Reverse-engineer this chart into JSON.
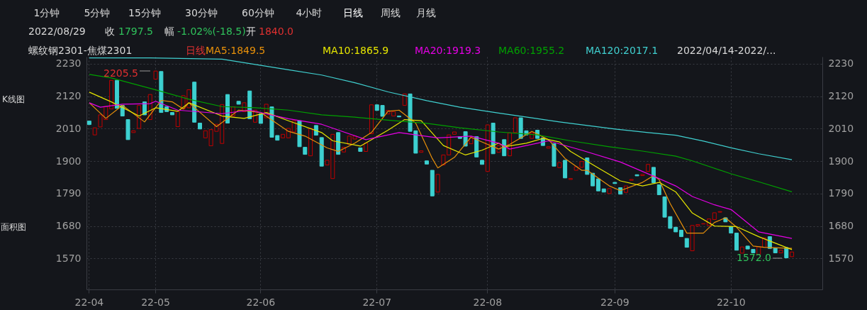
{
  "chart_data": {
    "type": "candlestick",
    "title": "螺纹钢2301-焦煤2301",
    "subtitle": "日线",
    "annotations": [
      "1分钟",
      "5分钟",
      "15分钟",
      "30分钟",
      "60分钟",
      "4小时",
      "日线",
      "周线",
      "月线",
      "2022/08/29",
      "收",
      "1797.5",
      "幅",
      "-1.02%(-18.5)",
      "开",
      "1840.0",
      "K线图",
      "面积图",
      "2022/04/14-2022/...",
      "2205.5",
      "1572.0"
    ],
    "categories": [
      "22-04",
      null,
      null,
      null,
      null,
      null,
      null,
      null,
      null,
      null,
      null,
      null,
      "22-05",
      null,
      null,
      null,
      null,
      null,
      null,
      null,
      null,
      null,
      null,
      null,
      null,
      null,
      null,
      null,
      null,
      null,
      null,
      "22-06",
      null,
      null,
      null,
      null,
      null,
      null,
      null,
      null,
      null,
      null,
      null,
      null,
      null,
      null,
      null,
      null,
      null,
      null,
      null,
      null,
      "22-07",
      null,
      null,
      null,
      null,
      null,
      null,
      null,
      null,
      null,
      null,
      null,
      null,
      null,
      null,
      null,
      null,
      null,
      null,
      null,
      "22-08",
      null,
      null,
      null,
      null,
      null,
      null,
      null,
      null,
      null,
      null,
      null,
      null,
      null,
      null,
      null,
      null,
      null,
      null,
      null,
      null,
      null,
      null,
      "22-09",
      null,
      null,
      null,
      null,
      null,
      null,
      null,
      null,
      null,
      null,
      null,
      null,
      null,
      null,
      null,
      null,
      null,
      null,
      null,
      null,
      "22-10",
      null,
      null,
      null,
      null,
      null,
      null,
      null,
      null,
      null,
      null,
      null
    ],
    "ohlc": [
      [
        2036,
        2036,
        2024,
        2024
      ],
      [
        1989,
        2013,
        1989,
        2013
      ],
      [
        2016,
        2057,
        2016,
        2057
      ],
      [
        2041,
        2085,
        2041,
        2085
      ],
      [
        2077,
        2174,
        2077,
        2174
      ],
      [
        2174,
        2174,
        2079,
        2079
      ],
      [
        2089,
        2089,
        2053,
        2053
      ],
      [
        2041,
        2041,
        1973,
        1973
      ],
      [
        1997,
        2003,
        1997,
        2003
      ],
      [
        2011,
        2089,
        2011,
        2089
      ],
      [
        2101,
        2101,
        2057,
        2057
      ],
      [
        2041,
        2126,
        2041,
        2126
      ],
      [
        2178,
        2205.5,
        2178,
        2205.5
      ],
      [
        2204,
        2204,
        2065,
        2065
      ],
      [
        2085,
        2085,
        2068,
        2068
      ],
      [
        2065,
        2065,
        2057,
        2057
      ],
      [
        2017,
        2069,
        2017,
        2069
      ],
      [
        2077,
        2122,
        2077,
        2122
      ],
      [
        2081,
        2142,
        2081,
        2142
      ],
      [
        2168,
        2168,
        2032,
        2032
      ],
      [
        2029,
        2029,
        2009,
        2009
      ],
      [
        1979,
        2003,
        1979,
        2003
      ],
      [
        1952,
        2007,
        1952,
        2007
      ],
      [
        2001,
        2025,
        2001,
        2025
      ],
      [
        1960,
        2092,
        1960,
        2092
      ],
      [
        2126,
        2126,
        2029,
        2029
      ],
      [
        2053,
        2084,
        2053,
        2084
      ],
      [
        2103,
        2103,
        2093,
        2093
      ],
      [
        2068,
        2098,
        2068,
        2098
      ],
      [
        2138,
        2138,
        2044,
        2044
      ],
      [
        2032,
        2073,
        2032,
        2073
      ],
      [
        2061,
        2061,
        2028,
        2028
      ],
      [
        2047,
        2093,
        2047,
        2093
      ],
      [
        2084,
        2084,
        1981,
        1981
      ],
      [
        1987,
        1987,
        1971,
        1971
      ],
      [
        1979,
        1991,
        1979,
        1991
      ],
      [
        1979,
        2011,
        1979,
        2011
      ],
      [
        1999,
        2037,
        1999,
        2037
      ],
      [
        2037,
        2037,
        1949,
        1949
      ],
      [
        1947,
        1947,
        1923,
        1923
      ],
      [
        1918,
        2011,
        1918,
        2011
      ],
      [
        2021,
        2021,
        1988,
        1988
      ],
      [
        1980,
        1980,
        1883,
        1883
      ],
      [
        1887,
        1903,
        1887,
        1903
      ],
      [
        1841,
        1991,
        1841,
        1991
      ],
      [
        1997,
        1997,
        1923,
        1923
      ],
      [
        1931,
        1947,
        1931,
        1947
      ],
      [
        1957,
        1985,
        1957,
        1985
      ],
      [
        1975,
        1985,
        1975,
        1985
      ],
      [
        1945,
        1945,
        1933,
        1933
      ],
      [
        1933,
        1961,
        1933,
        1961
      ],
      [
        1993,
        2091,
        1993,
        2091
      ],
      [
        2091,
        2091,
        2072,
        2072
      ],
      [
        2089,
        2089,
        2052,
        2052
      ],
      [
        2060,
        2072,
        2060,
        2072
      ],
      [
        2053,
        2068,
        2053,
        2068
      ],
      [
        2053,
        2053,
        2050,
        2050
      ],
      [
        2089,
        2128,
        2089,
        2128
      ],
      [
        2128,
        2128,
        2001,
        2001
      ],
      [
        2003,
        2003,
        1927,
        1927
      ],
      [
        1930,
        1935,
        1930,
        1935
      ],
      [
        1901,
        1901,
        1890,
        1890
      ],
      [
        1869,
        1869,
        1782,
        1782
      ],
      [
        1795,
        1855,
        1795,
        1855
      ],
      [
        1887,
        1921,
        1887,
        1921
      ],
      [
        1921,
        1989,
        1921,
        1989
      ],
      [
        1991,
        1999,
        1991,
        1999
      ],
      [
        1983,
        1983,
        1977,
        1977
      ],
      [
        2000,
        2000,
        1951,
        1951
      ],
      [
        1959,
        1979,
        1959,
        1979
      ],
      [
        1983,
        1983,
        1914,
        1914
      ],
      [
        1903,
        1903,
        1889,
        1889
      ],
      [
        1865,
        2023,
        1865,
        2023
      ],
      [
        2029,
        2029,
        1925,
        1925
      ],
      [
        1930,
        1953,
        1930,
        1953
      ],
      [
        1973,
        1973,
        1918,
        1918
      ],
      [
        1918,
        1996,
        1918,
        1996
      ],
      [
        1997,
        2047,
        1997,
        2047
      ],
      [
        2047,
        2047,
        1977,
        1977
      ],
      [
        2003,
        2003,
        1989,
        1989
      ],
      [
        1977,
        1996,
        1977,
        1996
      ],
      [
        2005,
        2005,
        1977,
        1977
      ],
      [
        1979,
        1979,
        1953,
        1953
      ],
      [
        1944,
        1949,
        1944,
        1949
      ],
      [
        1959,
        1959,
        1883,
        1883
      ],
      [
        1878,
        1895,
        1878,
        1895
      ],
      [
        1903,
        1903,
        1843,
        1843
      ],
      [
        1838,
        1841,
        1838,
        1841
      ],
      [
        1869,
        1881,
        1869,
        1881
      ],
      [
        1879,
        1899,
        1879,
        1899
      ],
      [
        1911,
        1911,
        1855,
        1855
      ],
      [
        1859,
        1859,
        1816,
        1816
      ],
      [
        1840,
        1840,
        1799,
        1799
      ],
      [
        1806,
        1806,
        1795,
        1795
      ],
      [
        1790,
        1807,
        1790,
        1807
      ],
      [
        1828,
        1828,
        1824,
        1824
      ],
      [
        1810,
        1810,
        1788,
        1788
      ],
      [
        1794,
        1816,
        1794,
        1816
      ],
      [
        1835,
        1838,
        1835,
        1838
      ],
      [
        1854,
        1854,
        1850,
        1850
      ],
      [
        1851,
        1855,
        1851,
        1855
      ],
      [
        1865,
        1889,
        1865,
        1889
      ],
      [
        1879,
        1879,
        1827,
        1827
      ],
      [
        1820,
        1820,
        1786,
        1786
      ],
      [
        1779,
        1779,
        1710,
        1710
      ],
      [
        1712,
        1712,
        1672,
        1672
      ],
      [
        1676,
        1676,
        1660,
        1660
      ],
      [
        1666,
        1666,
        1644,
        1644
      ],
      [
        1638,
        1638,
        1608,
        1608
      ],
      [
        1596,
        1682,
        1596,
        1682
      ],
      [
        1680,
        1685,
        1680,
        1685
      ],
      [
        1687,
        1688,
        1687,
        1688
      ],
      [
        1682,
        1704,
        1682,
        1704
      ],
      [
        1702,
        1725,
        1702,
        1725
      ],
      [
        1727,
        1729,
        1727,
        1729
      ],
      [
        1708,
        1708,
        1694,
        1694
      ],
      [
        1678,
        1678,
        1656,
        1656
      ],
      [
        1656,
        1656,
        1598,
        1598
      ],
      [
        1588,
        1609,
        1588,
        1609
      ],
      [
        1612,
        1612,
        1602,
        1602
      ],
      [
        1601,
        1601,
        1589,
        1589
      ],
      [
        1584,
        1610,
        1584,
        1610
      ],
      [
        1608,
        1640,
        1608,
        1640
      ],
      [
        1644,
        1644,
        1604,
        1604
      ],
      [
        1605,
        1605,
        1589,
        1589
      ],
      [
        1589,
        1598,
        1589,
        1598
      ],
      [
        1607,
        1607,
        1572.0,
        1572.0
      ],
      [
        1576,
        1592,
        1576,
        1592
      ]
    ],
    "colors": [
      "#3dd0d0",
      "#c00000",
      "#c00000",
      "#c00000",
      "#c00000",
      "#3dd0d0",
      "#3dd0d0",
      "#3dd0d0",
      "#c00000",
      "#c00000",
      "#3dd0d0",
      "#c00000",
      "#c00000",
      "#3dd0d0",
      "#3dd0d0",
      "#3dd0d0",
      "#c00000",
      "#c00000",
      "#c00000",
      "#3dd0d0",
      "#3dd0d0",
      "#c00000",
      "#c00000",
      "#c00000",
      "#c00000",
      "#3dd0d0",
      "#c00000",
      "#3dd0d0",
      "#c00000",
      "#3dd0d0",
      "#c00000",
      "#3dd0d0",
      "#c00000",
      "#3dd0d0",
      "#3dd0d0",
      "#c00000",
      "#c00000",
      "#c00000",
      "#3dd0d0",
      "#3dd0d0",
      "#c00000",
      "#3dd0d0",
      "#3dd0d0",
      "#c00000",
      "#c00000",
      "#3dd0d0",
      "#c00000",
      "#c00000",
      "#c00000",
      "#3dd0d0",
      "#c00000",
      "#c00000",
      "#3dd0d0",
      "#3dd0d0",
      "#c00000",
      "#c00000",
      "#3dd0d0",
      "#c00000",
      "#3dd0d0",
      "#3dd0d0",
      "#c00000",
      "#3dd0d0",
      "#3dd0d0",
      "#c00000",
      "#c00000",
      "#c00000",
      "#c00000",
      "#3dd0d0",
      "#3dd0d0",
      "#c00000",
      "#3dd0d0",
      "#3dd0d0",
      "#c00000",
      "#3dd0d0",
      "#c00000",
      "#3dd0d0",
      "#c00000",
      "#c00000",
      "#3dd0d0",
      "#3dd0d0",
      "#c00000",
      "#3dd0d0",
      "#3dd0d0",
      "#c00000",
      "#3dd0d0",
      "#c00000",
      "#3dd0d0",
      "#c00000",
      "#c00000",
      "#c00000",
      "#3dd0d0",
      "#3dd0d0",
      "#3dd0d0",
      "#3dd0d0",
      "#c00000",
      "#3dd0d0",
      "#3dd0d0",
      "#c00000",
      "#c00000",
      "#3dd0d0",
      "#c00000",
      "#c00000",
      "#3dd0d0",
      "#3dd0d0",
      "#3dd0d0",
      "#3dd0d0",
      "#3dd0d0",
      "#3dd0d0",
      "#3dd0d0",
      "#c00000",
      "#c00000",
      "#c00000",
      "#c00000",
      "#c00000",
      "#c00000",
      "#3dd0d0",
      "#3dd0d0",
      "#3dd0d0",
      "#c00000",
      "#3dd0d0",
      "#3dd0d0",
      "#c00000",
      "#c00000",
      "#3dd0d0",
      "#3dd0d0",
      "#c00000",
      "#3dd0d0",
      "#c00000"
    ],
    "series": [
      {
        "name": "MA5:1849.5",
        "type": "line",
        "color": "#e8900a",
        "values": [
          2098,
          null,
          null,
          2045,
          null,
          null,
          2089,
          null,
          null,
          null,
          2033,
          null,
          null,
          2106,
          null,
          2101,
          null,
          2077,
          2098,
          null,
          null,
          null,
          null,
          2017,
          null,
          null,
          null,
          2073,
          null,
          null,
          null,
          2065,
          null,
          null,
          null,
          null,
          2001,
          null,
          null,
          1985,
          null,
          null,
          null,
          1945,
          null,
          1933,
          null,
          null,
          1961,
          null,
          null,
          1997,
          null,
          null,
          2069,
          null,
          2073,
          null,
          null,
          2029,
          null,
          null,
          1909,
          1877,
          null,
          null,
          1913,
          null,
          null,
          1981,
          null,
          null,
          1957,
          null,
          1941,
          null,
          1957,
          null,
          null,
          null,
          2001,
          null,
          null,
          1973,
          null,
          null,
          1909,
          null,
          null,
          1869,
          1869,
          null,
          null,
          null,
          1816,
          null,
          1800,
          null,
          null,
          null,
          1828,
          null,
          1851,
          1837,
          null,
          1756,
          null,
          null,
          1656,
          null,
          null,
          1656,
          null,
          1692,
          null,
          1708,
          null,
          1676,
          null,
          null,
          1612,
          null,
          1608,
          null,
          null,
          null,
          null,
          1604
        ]
      },
      {
        "name": "MA10:1865.9",
        "type": "line",
        "color": "#e6e600",
        "values": [
          2134,
          null,
          null,
          null,
          2101,
          null,
          null,
          null,
          null,
          2053,
          null,
          null,
          2081,
          null,
          null,
          null,
          2069,
          null,
          2098,
          null,
          null,
          null,
          null,
          null,
          2053,
          null,
          null,
          null,
          2045,
          null,
          null,
          null,
          2065,
          null,
          null,
          null,
          2037,
          null,
          null,
          null,
          null,
          null,
          1997,
          null,
          1969,
          null,
          null,
          null,
          null,
          1951,
          null,
          null,
          null,
          null,
          2005,
          null,
          null,
          2041,
          null,
          null,
          2037,
          null,
          null,
          null,
          1953,
          null,
          null,
          null,
          1921,
          null,
          null,
          1937,
          null,
          null,
          1961,
          1949,
          null,
          null,
          null,
          1961,
          null,
          null,
          1977,
          null,
          null,
          1965,
          null,
          1933,
          null,
          null,
          null,
          null,
          1877,
          null,
          null,
          null,
          1833,
          null,
          null,
          null,
          1816,
          null,
          null,
          1828,
          null,
          null,
          1796,
          null,
          null,
          1724,
          null,
          null,
          null,
          1680,
          null,
          null,
          null,
          1678,
          null,
          null,
          null,
          1644,
          null,
          null,
          null,
          null,
          null,
          1600
        ]
      },
      {
        "name": "MA20:1919.3",
        "type": "line",
        "color": "#e600e6",
        "values": [
          2098,
          null,
          2083,
          null,
          null,
          null,
          2093,
          null,
          null,
          null,
          null,
          2095,
          2103,
          null,
          null,
          null,
          2073,
          null,
          null,
          null,
          null,
          null,
          null,
          null,
          2061,
          null,
          null,
          null,
          null,
          2073,
          null,
          null,
          null,
          null,
          null,
          null,
          2044,
          null,
          null,
          null,
          null,
          null,
          2025,
          null,
          null,
          null,
          null,
          null,
          null,
          null,
          1973,
          null,
          null,
          null,
          null,
          null,
          1997,
          null,
          null,
          null,
          null,
          null,
          null,
          1979,
          null,
          null,
          null,
          null,
          null,
          1985,
          null,
          null,
          null,
          null,
          1961,
          null,
          1941,
          null,
          null,
          null,
          null,
          null,
          null,
          1969,
          null,
          null,
          null,
          null,
          null,
          1937,
          null,
          null,
          null,
          null,
          null,
          null,
          1897,
          null,
          null,
          null,
          null,
          null,
          1849,
          null,
          null,
          null,
          1816,
          null,
          null,
          1780,
          null,
          null,
          null,
          1752,
          null,
          null,
          1736,
          null,
          null,
          null,
          null,
          1660,
          null,
          null,
          null,
          null,
          null,
          1638
        ]
      },
      {
        "name": "MA60:1955.2",
        "type": "line",
        "color": "#00a000",
        "values": [
          2194,
          null,
          null,
          null,
          2182,
          null,
          null,
          null,
          null,
          null,
          null,
          null,
          2142,
          null,
          null,
          null,
          null,
          null,
          2110,
          null,
          null,
          null,
          null,
          null,
          2085,
          null,
          null,
          null,
          null,
          null,
          2081,
          null,
          null,
          null,
          null,
          null,
          2073,
          null,
          null,
          null,
          null,
          null,
          2057,
          null,
          null,
          null,
          null,
          null,
          2049,
          null,
          null,
          null,
          null,
          null,
          2039,
          null,
          null,
          null,
          null,
          null,
          null,
          2028,
          null,
          null,
          null,
          null,
          null,
          2013,
          null,
          null,
          null,
          null,
          null,
          null,
          1999,
          null,
          null,
          null,
          null,
          null,
          null,
          1989,
          null,
          null,
          null,
          null,
          null,
          1969,
          null,
          null,
          null,
          null,
          null,
          null,
          1949,
          null,
          null,
          null,
          null,
          null,
          1934,
          null,
          null,
          null,
          null,
          null,
          1917,
          null,
          null,
          1901,
          null,
          null,
          null,
          null,
          null,
          null,
          1857,
          null,
          null,
          null,
          null,
          1830,
          null,
          null,
          null,
          null,
          null,
          1796
        ]
      },
      {
        "name": "MA120:2017.1",
        "type": "line",
        "color": "#40d0d0",
        "values": [
          2250,
          null,
          null,
          null,
          null,
          null,
          null,
          null,
          null,
          null,
          null,
          2250,
          null,
          null,
          null,
          null,
          null,
          null,
          null,
          null,
          null,
          null,
          null,
          null,
          2246,
          null,
          null,
          null,
          null,
          null,
          null,
          null,
          null,
          null,
          null,
          null,
          2210,
          null,
          null,
          null,
          null,
          null,
          2192,
          null,
          null,
          null,
          null,
          null,
          2166,
          null,
          null,
          null,
          null,
          null,
          2135,
          null,
          null,
          null,
          null,
          null,
          null,
          2105,
          null,
          null,
          null,
          null,
          null,
          2083,
          null,
          null,
          null,
          null,
          null,
          null,
          2063,
          null,
          null,
          null,
          null,
          null,
          2047,
          null,
          null,
          null,
          null,
          2033,
          null,
          null,
          null,
          null,
          2021,
          null,
          null,
          null,
          null,
          2009,
          null,
          null,
          null,
          null,
          null,
          1997,
          null,
          null,
          null,
          null,
          1988,
          null,
          null,
          null,
          null,
          1968,
          null,
          null,
          null,
          null,
          1945,
          null,
          null,
          null,
          null,
          1925,
          null,
          null,
          null,
          null,
          null,
          1905
        ]
      }
    ],
    "ylim": [
      1465,
      2254
    ],
    "yticks": [
      1570,
      1680,
      1790,
      1900,
      2010,
      2120,
      2230
    ],
    "y2lim": [
      1465,
      2254
    ],
    "y2ticks": [
      1570,
      1680,
      1790,
      1900,
      2010,
      2120,
      2230
    ],
    "grid": true,
    "legend": "top"
  }
}
